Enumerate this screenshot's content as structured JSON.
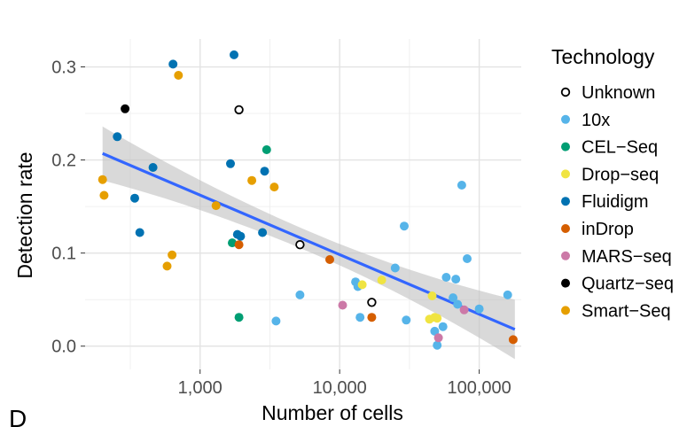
{
  "panel_letter": "D",
  "chart_data": {
    "type": "scatter",
    "title": "",
    "xlabel": "Number of cells",
    "ylabel": "Detection rate",
    "x_scale": "log10",
    "xlim": [
      150,
      200000
    ],
    "ylim": [
      -0.025,
      0.33
    ],
    "x_ticks": [
      1000,
      10000,
      100000
    ],
    "x_tick_labels": [
      "1,000",
      "10,000",
      "100,000"
    ],
    "y_ticks": [
      0.0,
      0.1,
      0.2,
      0.3
    ],
    "y_tick_labels": [
      "0.0",
      "0.1",
      "0.2",
      "0.3"
    ],
    "grid": true,
    "legend": {
      "title": "Technology",
      "placement": "right",
      "entries": [
        {
          "key": "Unknown",
          "label": "Unknown",
          "color": "#000000",
          "hollow": true
        },
        {
          "key": "10x",
          "label": "10x",
          "color": "#56B4E9",
          "hollow": false
        },
        {
          "key": "CEL-Seq",
          "label": "CEL−Seq",
          "color": "#009E73",
          "hollow": false
        },
        {
          "key": "Drop-seq",
          "label": "Drop−seq",
          "color": "#F0E442",
          "hollow": false
        },
        {
          "key": "Fluidigm",
          "label": "Fluidigm",
          "color": "#0072B2",
          "hollow": false
        },
        {
          "key": "inDrop",
          "label": "inDrop",
          "color": "#D55E00",
          "hollow": false
        },
        {
          "key": "MARS-seq",
          "label": "MARS−seq",
          "color": "#CC79A7",
          "hollow": false
        },
        {
          "key": "Quartz-seq",
          "label": "Quartz−seq",
          "color": "#000000",
          "hollow": false
        },
        {
          "key": "Smart-Seq",
          "label": "Smart−Seq",
          "color": "#E69F00",
          "hollow": false
        }
      ]
    },
    "trend": {
      "method": "lm",
      "color": "#3366FF",
      "band_color": "#bfbfbf",
      "x": [
        200,
        180000
      ],
      "y": [
        0.207,
        0.018
      ],
      "ci_halfwidth_left": 0.029,
      "ci_halfwidth_mid": 0.011,
      "ci_halfwidth_right": 0.032
    },
    "series": [
      {
        "name": "Unknown",
        "x": [
          1900,
          5200,
          17000
        ],
        "y": [
          0.254,
          0.109,
          0.047
        ]
      },
      {
        "name": "10x",
        "x": [
          3500,
          5200,
          13000,
          13500,
          14000,
          25000,
          29000,
          30000,
          48000,
          50000,
          55000,
          58000,
          65000,
          68000,
          70000,
          75000,
          82000,
          100000,
          160000
        ],
        "y": [
          0.027,
          0.055,
          0.069,
          0.064,
          0.031,
          0.084,
          0.129,
          0.028,
          0.016,
          0.001,
          0.021,
          0.074,
          0.052,
          0.072,
          0.045,
          0.173,
          0.094,
          0.04,
          0.055
        ]
      },
      {
        "name": "CEL-Seq",
        "x": [
          1700,
          1900,
          3000
        ],
        "y": [
          0.111,
          0.031,
          0.211
        ]
      },
      {
        "name": "Drop-seq",
        "x": [
          14500,
          20000,
          44000,
          46000,
          48000,
          50000
        ],
        "y": [
          0.066,
          0.071,
          0.029,
          0.054,
          0.031,
          0.03
        ]
      },
      {
        "name": "Fluidigm",
        "x": [
          255,
          340,
          370,
          460,
          640,
          1650,
          1750,
          1850,
          1950,
          2800,
          2900
        ],
        "y": [
          0.225,
          0.159,
          0.122,
          0.192,
          0.303,
          0.196,
          0.313,
          0.12,
          0.118,
          0.122,
          0.188
        ]
      },
      {
        "name": "inDrop",
        "x": [
          1900,
          8500,
          17000,
          175000
        ],
        "y": [
          0.109,
          0.093,
          0.031,
          0.007
        ]
      },
      {
        "name": "MARS-seq",
        "x": [
          10500,
          51000,
          78000
        ],
        "y": [
          0.044,
          0.009,
          0.039
        ]
      },
      {
        "name": "Quartz-seq",
        "x": [
          290
        ],
        "y": [
          0.255
        ]
      },
      {
        "name": "Smart-Seq",
        "x": [
          200,
          205,
          580,
          630,
          700,
          1300,
          2350,
          3400
        ],
        "y": [
          0.179,
          0.162,
          0.086,
          0.098,
          0.291,
          0.151,
          0.178,
          0.171
        ]
      }
    ]
  }
}
